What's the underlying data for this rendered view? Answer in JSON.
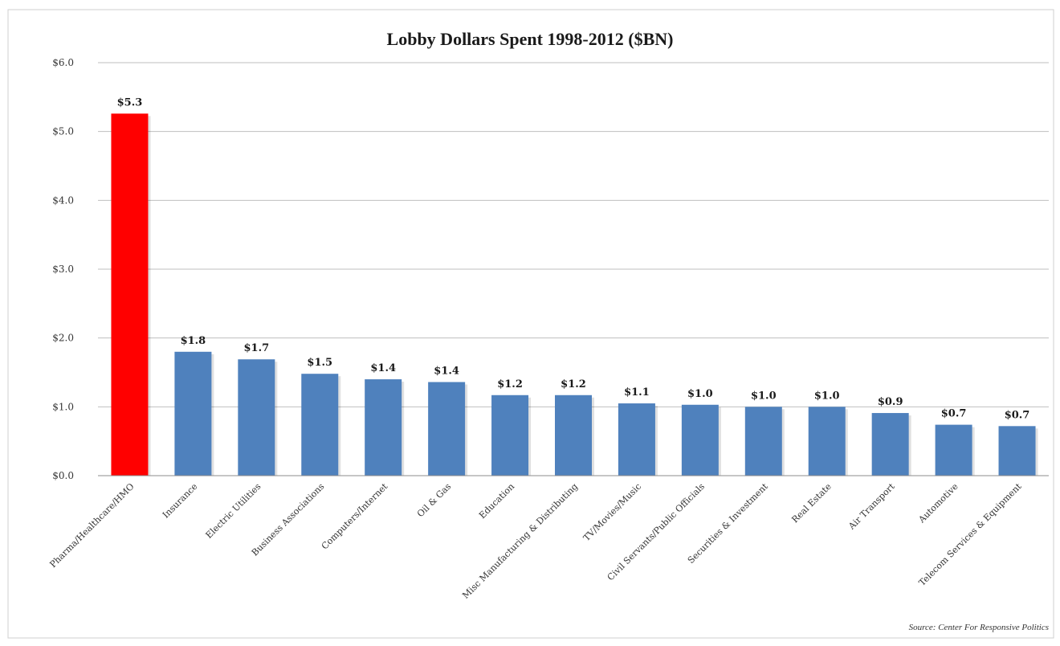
{
  "chart_data": {
    "type": "bar",
    "title": "Lobby Dollars Spent 1998-2012 ($BN)",
    "xlabel": "",
    "ylabel": "",
    "ylim": [
      0,
      6
    ],
    "grid": true,
    "yticks": [
      "$0.0",
      "$1.0",
      "$2.0",
      "$3.0",
      "$4.0",
      "$5.0",
      "$6.0"
    ],
    "categories": [
      "Pharma/Healthcare/HMO",
      "Insurance",
      "Electric Utilities",
      "Business Associations",
      "Computers/Internet",
      "Oil & Gas",
      "Education",
      "Misc Manufacturing & Distributing",
      "TV/Movies/Music",
      "Civil Servants/Public Officials",
      "Securities & Investment",
      "Real Estate",
      "Air Transport",
      "Automotive",
      "Telecom Services & Equipment"
    ],
    "values": [
      5.26,
      1.8,
      1.69,
      1.48,
      1.4,
      1.36,
      1.17,
      1.17,
      1.05,
      1.03,
      1.0,
      1.0,
      0.91,
      0.74,
      0.72
    ],
    "data_labels": [
      "$5.3",
      "$1.8",
      "$1.7",
      "$1.5",
      "$1.4",
      "$1.4",
      "$1.2",
      "$1.2",
      "$1.1",
      "$1.0",
      "$1.0",
      "$1.0",
      "$0.9",
      "$0.7",
      "$0.7"
    ],
    "colors": {
      "highlight": "#ff0000",
      "bar": "#4f81bd",
      "grid": "#bfbfbf"
    },
    "highlight_index": 0,
    "source": "Source: Center For Responsive Politics"
  }
}
